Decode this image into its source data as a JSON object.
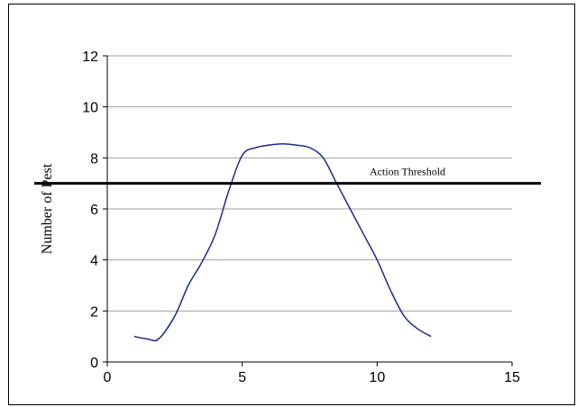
{
  "chart_data": {
    "type": "line",
    "title": "",
    "xlabel": "",
    "ylabel": "Number of Pest",
    "xlim": [
      0,
      15
    ],
    "ylim": [
      0,
      12
    ],
    "x_ticks": [
      0,
      5,
      10,
      15
    ],
    "y_ticks": [
      0,
      2,
      4,
      6,
      8,
      10,
      12
    ],
    "grid": "horizontal",
    "colors": {
      "series": "#1f2a8c",
      "threshold": "#000000",
      "grid": "#a0a0a0"
    },
    "series": [
      {
        "x": [
          1,
          1.5,
          1.9,
          2.5,
          3,
          3.5,
          4,
          4.5,
          5,
          5.5,
          6,
          6.5,
          7,
          7.5,
          8,
          8.5,
          9,
          9.5,
          10,
          10.5,
          11,
          11.5,
          12
        ],
        "values": [
          1.0,
          0.9,
          0.9,
          1.8,
          3.0,
          3.9,
          5.0,
          6.7,
          8.1,
          8.4,
          8.5,
          8.55,
          8.5,
          8.4,
          8.0,
          7.0,
          6.0,
          5.0,
          4.0,
          2.8,
          1.8,
          1.3,
          1.0
        ]
      }
    ],
    "threshold": {
      "value": 7,
      "label": "Action Threshold"
    }
  }
}
